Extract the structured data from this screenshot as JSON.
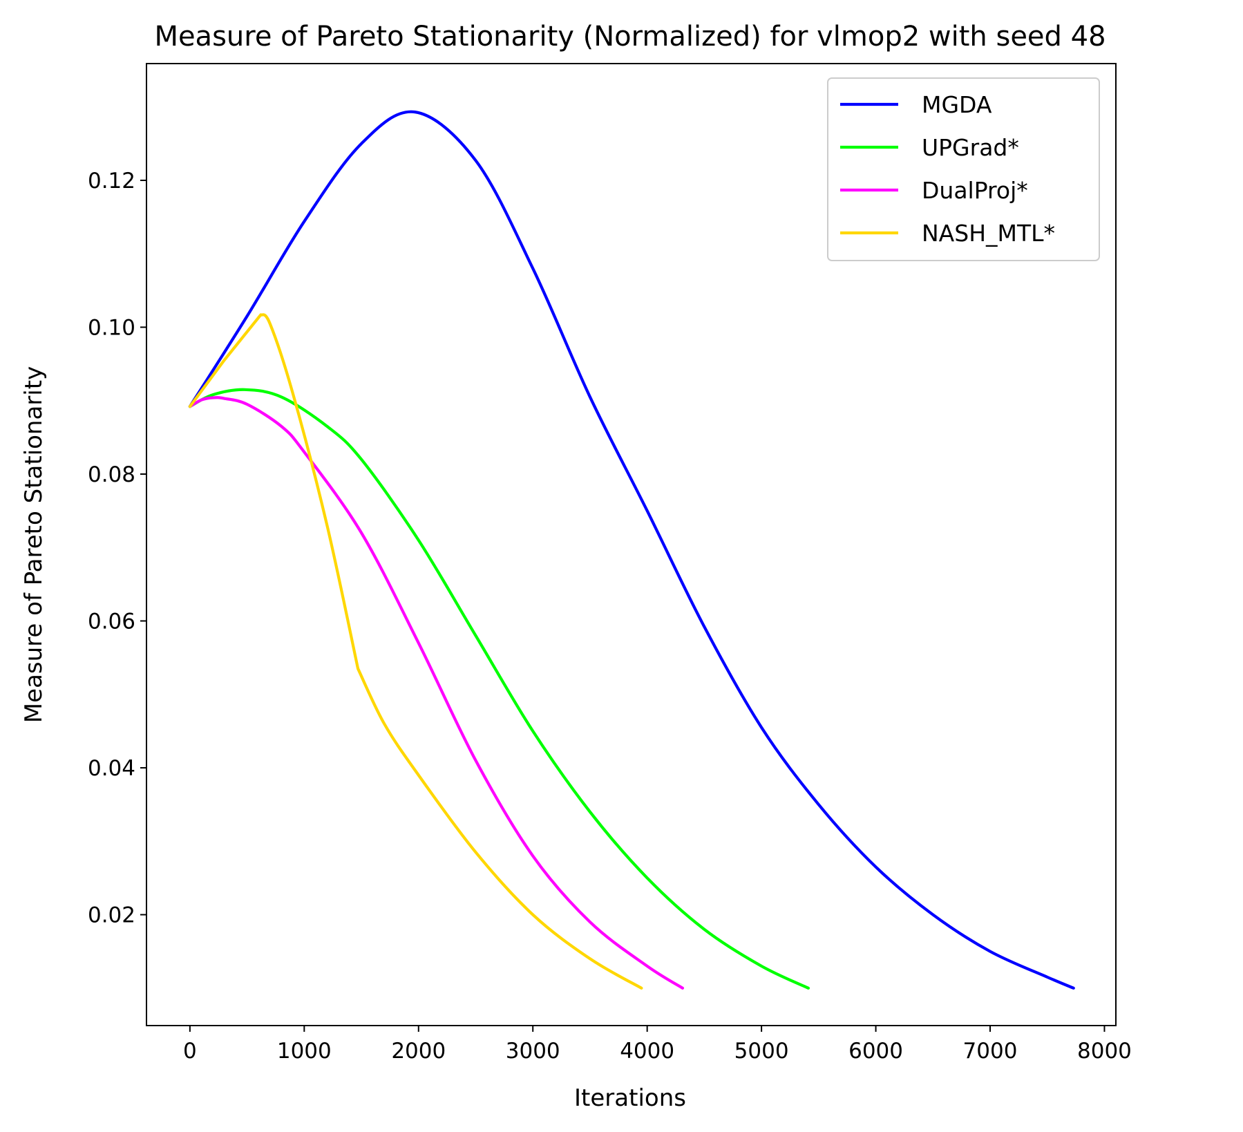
{
  "chart_data": {
    "type": "line",
    "title": "Measure of Pareto Stationarity (Normalized) for vlmop2 with seed 48",
    "xlabel": "Iterations",
    "ylabel": "Measure of Pareto Stationarity",
    "xlim": [
      -380,
      8100
    ],
    "ylim": [
      0.0049,
      0.1359
    ],
    "xticks": [
      {
        "value": 0,
        "label": "0"
      },
      {
        "value": 1000,
        "label": "1000"
      },
      {
        "value": 2000,
        "label": "2000"
      },
      {
        "value": 3000,
        "label": "3000"
      },
      {
        "value": 4000,
        "label": "4000"
      },
      {
        "value": 5000,
        "label": "5000"
      },
      {
        "value": 6000,
        "label": "6000"
      },
      {
        "value": 7000,
        "label": "7000"
      },
      {
        "value": 8000,
        "label": "8000"
      }
    ],
    "yticks": [
      {
        "value": 0.02,
        "label": "0.02"
      },
      {
        "value": 0.04,
        "label": "0.04"
      },
      {
        "value": 0.06,
        "label": "0.06"
      },
      {
        "value": 0.08,
        "label": "0.08"
      },
      {
        "value": 0.1,
        "label": "0.10"
      },
      {
        "value": 0.12,
        "label": "0.12"
      }
    ],
    "grid": false,
    "legend_position": "top-right",
    "series": [
      {
        "name": "MGDA",
        "color": "#0000ff",
        "points": [
          [
            0,
            0.0892
          ],
          [
            500,
            0.1015
          ],
          [
            1000,
            0.1144
          ],
          [
            1500,
            0.125
          ],
          [
            1970,
            0.1293
          ],
          [
            2500,
            0.1227
          ],
          [
            3000,
            0.108
          ],
          [
            3500,
            0.0905
          ],
          [
            4000,
            0.075
          ],
          [
            4500,
            0.0592
          ],
          [
            5000,
            0.0455
          ],
          [
            5500,
            0.035
          ],
          [
            6000,
            0.0265
          ],
          [
            6500,
            0.02
          ],
          [
            7000,
            0.015
          ],
          [
            7500,
            0.0115
          ],
          [
            7730,
            0.01
          ]
        ]
      },
      {
        "name": "UPGrad*",
        "color": "#00ff00",
        "points": [
          [
            0,
            0.0892
          ],
          [
            200,
            0.0908
          ],
          [
            480,
            0.0915
          ],
          [
            800,
            0.0905
          ],
          [
            1200,
            0.0865
          ],
          [
            1500,
            0.082
          ],
          [
            2000,
            0.071
          ],
          [
            2500,
            0.058
          ],
          [
            3000,
            0.045
          ],
          [
            3500,
            0.034
          ],
          [
            4000,
            0.025
          ],
          [
            4500,
            0.018
          ],
          [
            5000,
            0.013
          ],
          [
            5410,
            0.01
          ]
        ]
      },
      {
        "name": "DualProj*",
        "color": "#ff00ff",
        "points": [
          [
            0,
            0.0892
          ],
          [
            100,
            0.0901
          ],
          [
            200,
            0.0904
          ],
          [
            300,
            0.0903
          ],
          [
            500,
            0.0895
          ],
          [
            800,
            0.0865
          ],
          [
            1000,
            0.083
          ],
          [
            1500,
            0.072
          ],
          [
            2000,
            0.057
          ],
          [
            2500,
            0.041
          ],
          [
            3000,
            0.028
          ],
          [
            3500,
            0.019
          ],
          [
            4000,
            0.013
          ],
          [
            4310,
            0.01
          ]
        ]
      },
      {
        "name": "NASH_MTL*",
        "color": "#ffd700",
        "points": [
          [
            0,
            0.0892
          ],
          [
            300,
            0.0955
          ],
          [
            620,
            0.1017
          ],
          [
            700,
            0.1005
          ],
          [
            900,
            0.091
          ],
          [
            1200,
            0.073
          ],
          [
            1470,
            0.0535
          ],
          [
            1700,
            0.046
          ],
          [
            2000,
            0.039
          ],
          [
            2500,
            0.0285
          ],
          [
            3000,
            0.02
          ],
          [
            3500,
            0.014
          ],
          [
            3950,
            0.01
          ]
        ]
      }
    ]
  }
}
